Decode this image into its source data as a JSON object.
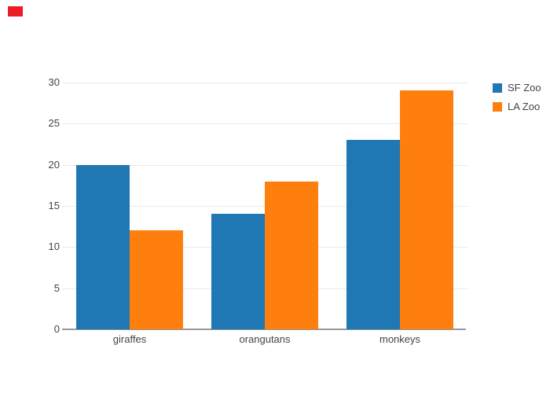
{
  "colors": {
    "background": "#ffffff",
    "grid": "#e9e9e9",
    "zero_line": "#9a9a9a",
    "tick_text": "#444444",
    "red_marker": "#ec1c24"
  },
  "chart_data": {
    "type": "bar",
    "mode": "grouped",
    "title": "",
    "xlabel": "",
    "ylabel": "",
    "categories": [
      "giraffes",
      "orangutans",
      "monkeys"
    ],
    "series": [
      {
        "name": "SF Zoo",
        "color": "#1f77b4",
        "values": [
          20,
          14,
          23
        ]
      },
      {
        "name": "LA Zoo",
        "color": "#ff7f0e",
        "values": [
          12,
          18,
          29
        ]
      }
    ],
    "yticks": [
      0,
      5,
      10,
      15,
      20,
      25,
      30
    ],
    "ylim": [
      0,
      30.5
    ],
    "grid": "horizontal",
    "legend_position": "right-top"
  }
}
